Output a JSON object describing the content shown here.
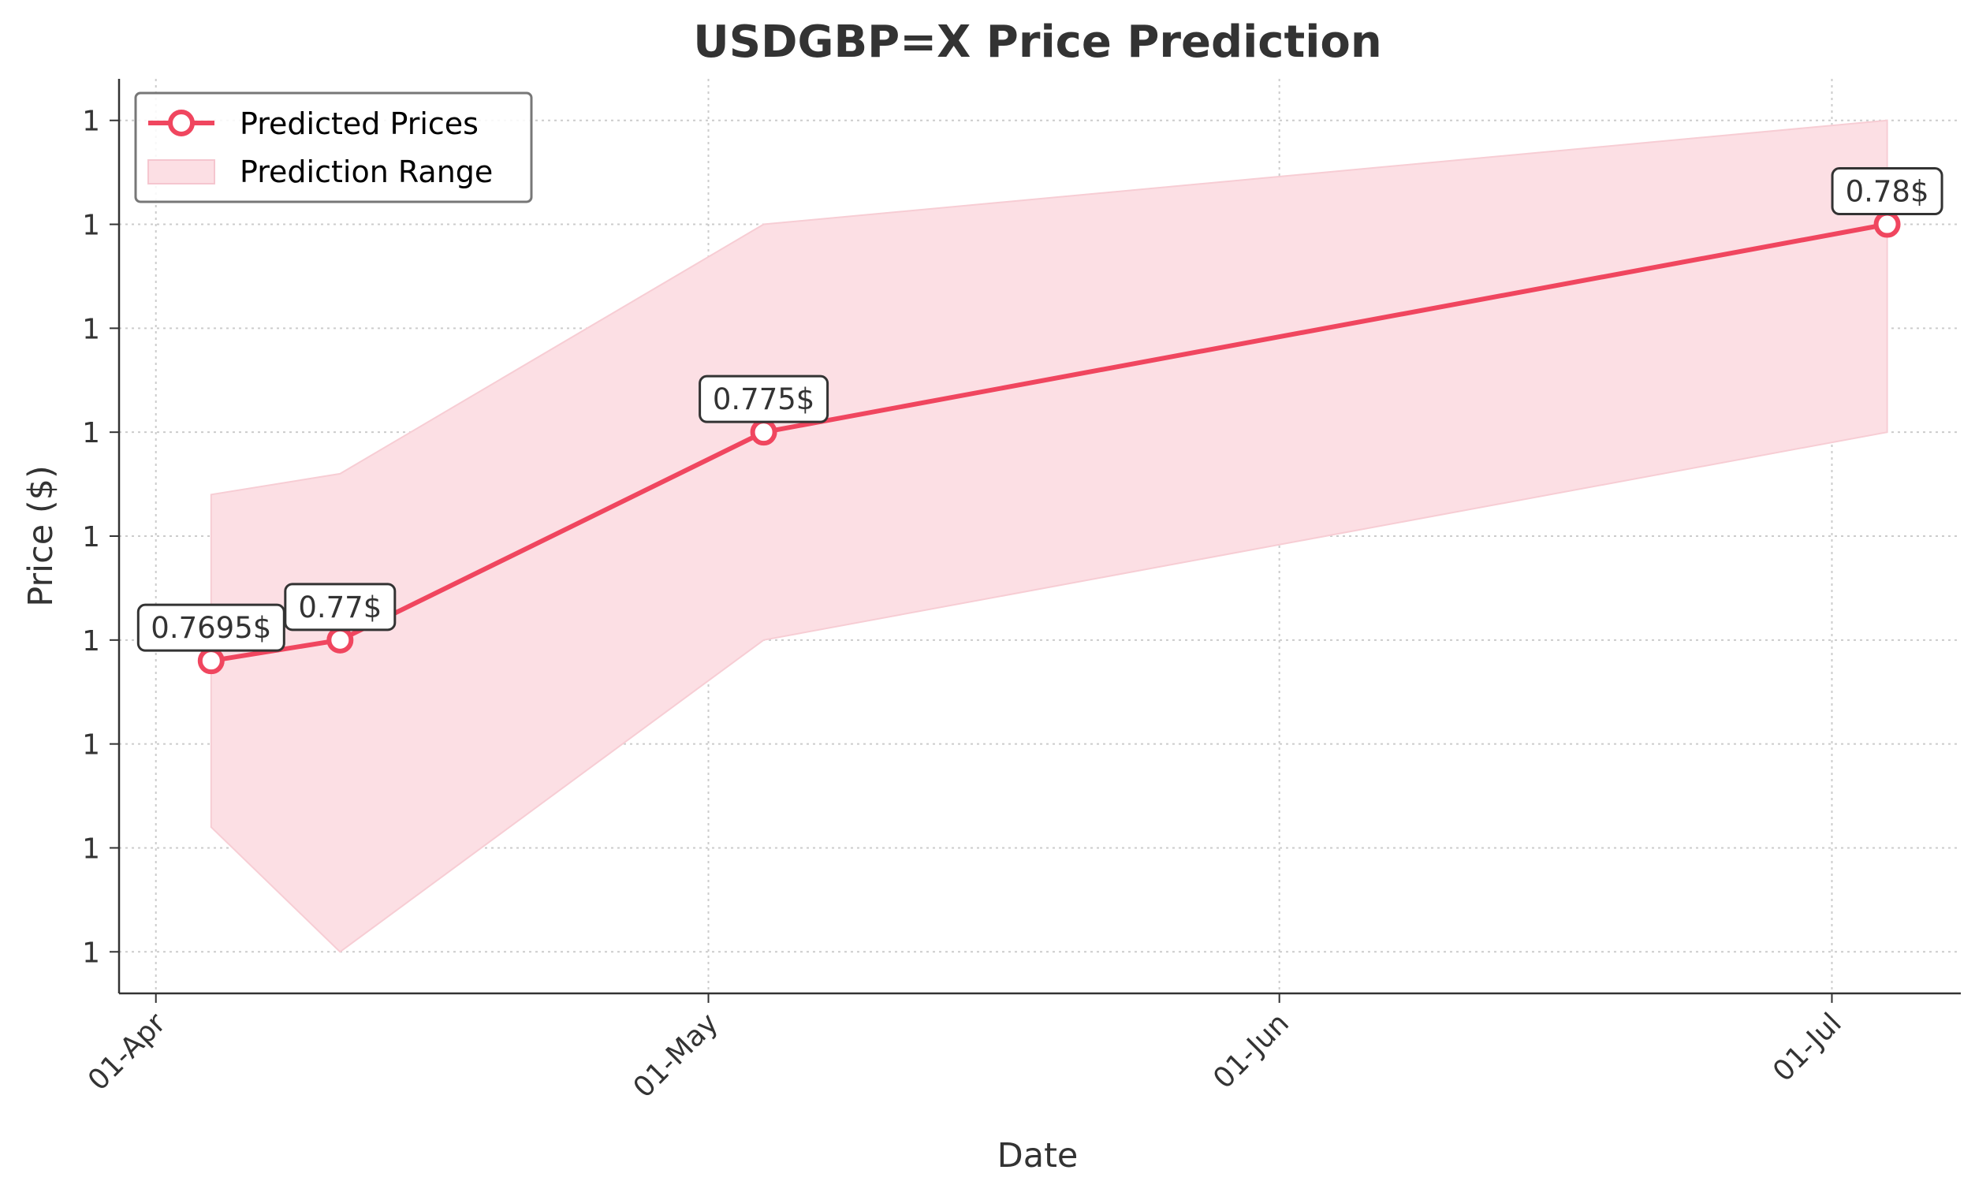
{
  "chart_data": {
    "type": "line",
    "title": "USDGBP=X Price Prediction",
    "xlabel": "Date",
    "ylabel": "Price ($)",
    "x_ticks": [
      {
        "date": "2024-04-01",
        "label": "01-Apr"
      },
      {
        "date": "2024-05-01",
        "label": "01-May"
      },
      {
        "date": "2024-06-01",
        "label": "01-Jun"
      },
      {
        "date": "2024-07-01",
        "label": "01-Jul"
      }
    ],
    "xlim": [
      "2024-03-30",
      "2024-07-08"
    ],
    "y_ticks": [
      0.7625,
      0.765,
      0.7675,
      0.77,
      0.7725,
      0.775,
      0.7775,
      0.78,
      0.7825
    ],
    "y_tick_labels": [
      "1",
      "1",
      "1",
      "1",
      "1",
      "1",
      "1",
      "1",
      "1"
    ],
    "ylim": [
      0.7615,
      0.7835
    ],
    "grid": true,
    "legend_position": "top-left",
    "series": [
      {
        "name": "Predicted Prices",
        "color": "#f0465f",
        "x": [
          "2024-04-04",
          "2024-04-11",
          "2024-05-04",
          "2024-07-04"
        ],
        "y": [
          0.7695,
          0.77,
          0.775,
          0.78
        ],
        "labels": [
          "0.7695$",
          "0.77$",
          "0.775$",
          "0.78$"
        ]
      }
    ],
    "range": {
      "name": "Prediction Range",
      "color": "#fcdfe4",
      "x": [
        "2024-04-04",
        "2024-04-11",
        "2024-05-04",
        "2024-07-04"
      ],
      "low": [
        0.7655,
        0.7625,
        0.77,
        0.775
      ],
      "high": [
        0.7735,
        0.774,
        0.78,
        0.7825
      ]
    }
  }
}
